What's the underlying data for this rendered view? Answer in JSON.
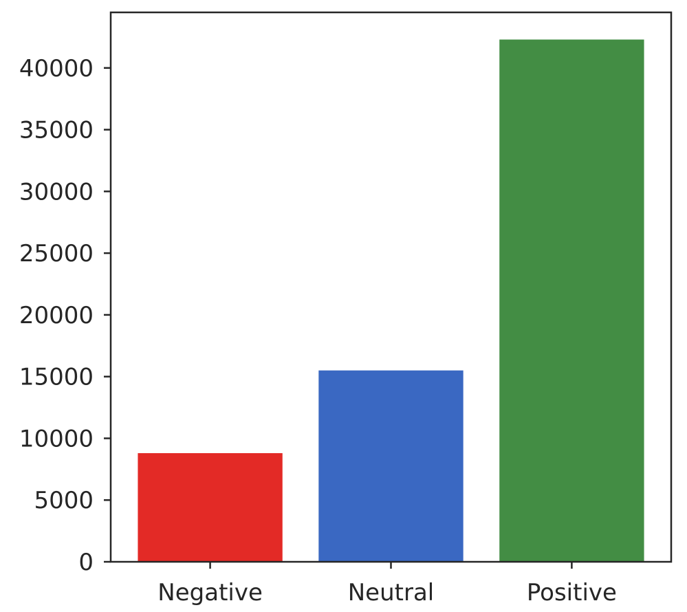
{
  "chart_data": {
    "type": "bar",
    "title": "",
    "xlabel": "",
    "ylabel": "",
    "categories": [
      "Negative",
      "Neutral",
      "Positive"
    ],
    "values": [
      8800,
      15500,
      42300
    ],
    "bar_colors": [
      "#e32a26",
      "#3a68c2",
      "#438d44"
    ],
    "ylim": [
      0,
      44500
    ],
    "yticks": [
      0,
      5000,
      10000,
      15000,
      20000,
      25000,
      30000,
      35000,
      40000
    ],
    "ytick_labels": [
      "0",
      "5000",
      "10000",
      "15000",
      "20000",
      "25000",
      "30000",
      "35000",
      "40000"
    ],
    "grid": false,
    "legend": "none"
  }
}
